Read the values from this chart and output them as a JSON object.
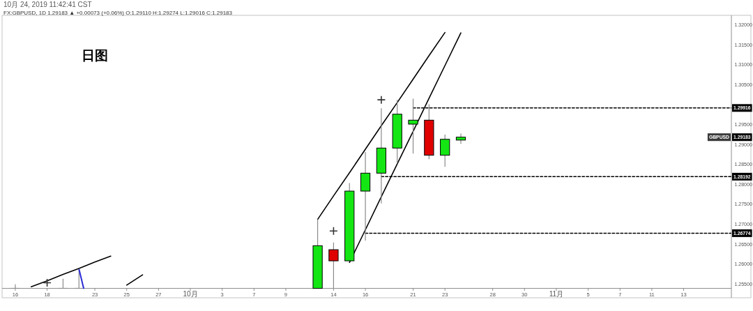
{
  "chart_data": {
    "type": "candlestick",
    "title": "日图",
    "annotations": [
      "10月 24, 2019 11:42:41 CST",
      "FX:GBPUSD, 1D 1.29183 ▲ +0.00073 (+0.06%) O:1.29110 H:1.29274 L:1.29016 C:1.29183",
      {
        "text": "1.29183",
        "y": 1.29183
      },
      "GBPUSD"
    ],
    "categories": [
      "16",
      null,
      "18",
      null,
      null,
      "23",
      null,
      "25",
      null,
      "27",
      null,
      "10月",
      null,
      "3",
      null,
      "7",
      null,
      "9",
      null,
      null,
      "14",
      null,
      "16",
      null,
      null,
      "21",
      null,
      "23",
      null,
      null,
      "28",
      null,
      "30",
      null,
      "11月",
      null,
      "5",
      null,
      "7",
      null,
      "11",
      null,
      "13",
      null,
      null,
      null
    ],
    "ylim": [
      1.2539,
      1.3224
    ],
    "yticks": [
      {
        "value": 1.255,
        "label": "1.25500"
      },
      {
        "value": 1.26,
        "label": "1.26000"
      },
      {
        "value": 1.265,
        "label": "1.26500"
      },
      {
        "value": 1.27,
        "label": "1.27000"
      },
      {
        "value": 1.275,
        "label": "1.27500"
      },
      {
        "value": 1.28,
        "label": "1.28000"
      },
      {
        "value": 1.285,
        "label": "1.28500"
      },
      {
        "value": 1.29,
        "label": "1.29000"
      },
      {
        "value": 1.295,
        "label": "1.29500"
      },
      {
        "value": 1.305,
        "label": "1.30500"
      },
      {
        "value": 1.31,
        "label": "1.31000"
      },
      {
        "value": 1.315,
        "label": "1.31500"
      },
      {
        "value": 1.32,
        "label": "1.32000"
      }
    ],
    "series": [
      {
        "color": "#8a8a8a",
        "ohlc": [
          [
            1.2539,
            1.2549,
            1.2539,
            1.2539
          ],
          null,
          null,
          [
            1.2539,
            1.2563,
            1.2539,
            1.2539
          ],
          [
            1.2539,
            1.2586,
            1.2539,
            1.2539
          ],
          null,
          null,
          null,
          null,
          null,
          null,
          null,
          null,
          null,
          null,
          null,
          null,
          null,
          null,
          [
            1.2539,
            1.2712,
            1.2539,
            1.2646
          ],
          [
            1.2636,
            1.2654,
            1.2539,
            1.2608
          ],
          [
            1.2608,
            1.2803,
            1.2608,
            1.2783
          ],
          [
            1.2783,
            1.2881,
            1.2659,
            1.2828
          ],
          [
            1.2828,
            1.2991,
            1.2752,
            1.2891
          ],
          [
            1.2891,
            1.3012,
            1.2852,
            1.2976
          ],
          [
            1.2951,
            1.3015,
            1.2877,
            1.2961
          ],
          [
            1.2961,
            1.3001,
            1.2863,
            1.2873
          ],
          [
            1.2873,
            1.2925,
            1.2844,
            1.2913
          ],
          [
            1.2911,
            1.29274,
            1.29016,
            1.29183
          ],
          null,
          null,
          null,
          null,
          null,
          null,
          null,
          null,
          null,
          null,
          null,
          null,
          null,
          null,
          null,
          null,
          null
        ],
        "colors": [
          null,
          null,
          null,
          null,
          null,
          null,
          null,
          null,
          null,
          null,
          null,
          null,
          null,
          null,
          null,
          null,
          null,
          null,
          null,
          "#14e614",
          "#e00000",
          "#14e614",
          "#14e614",
          "#14e614",
          "#14e614",
          "#14e614",
          "#e00000",
          "#14e614",
          "#14e614",
          null,
          null,
          null,
          null,
          null,
          null,
          null,
          null,
          null,
          null,
          null,
          null,
          null,
          null,
          null,
          null,
          null
        ]
      },
      {
        "type": "line",
        "color": "#000000",
        "values": [
          null,
          1.2543,
          1.2558,
          1.2574,
          1.2589,
          1.2605,
          1.262,
          null,
          null,
          null,
          null,
          null,
          null,
          null,
          null,
          null,
          null,
          null,
          null,
          null,
          null,
          null,
          null,
          null,
          null,
          null,
          null,
          null,
          null,
          null,
          null,
          null,
          null,
          null,
          null,
          null,
          null,
          null,
          null,
          null,
          null,
          null,
          null,
          null,
          null,
          null
        ]
      },
      {
        "type": "line",
        "color": "#000000",
        "values": [
          null,
          null,
          null,
          null,
          null,
          null,
          null,
          1.2547,
          1.2573,
          null,
          null,
          null,
          null,
          null,
          null,
          null,
          null,
          null,
          null,
          null,
          null,
          null,
          null,
          null,
          null,
          null,
          null,
          null,
          null,
          null,
          null,
          null,
          null,
          null,
          null,
          null,
          null,
          null,
          null,
          null,
          null,
          null,
          null,
          null,
          null,
          null
        ]
      },
      {
        "type": "line",
        "color": "#000000",
        "values": [
          null,
          null,
          null,
          null,
          null,
          null,
          null,
          null,
          null,
          null,
          null,
          null,
          null,
          null,
          null,
          null,
          null,
          null,
          null,
          1.2712,
          1.2771,
          1.2829,
          1.2888,
          1.2947,
          1.3005,
          1.3064,
          1.3123,
          1.3181,
          null,
          null,
          null,
          null,
          null,
          null,
          null,
          null,
          null,
          null,
          null,
          null,
          null,
          null,
          null,
          null,
          null,
          null
        ]
      },
      {
        "type": "line",
        "color": "#000000",
        "values": [
          null,
          null,
          null,
          null,
          null,
          null,
          null,
          null,
          null,
          null,
          null,
          null,
          null,
          null,
          null,
          null,
          null,
          null,
          null,
          null,
          null,
          1.2604,
          1.2686,
          1.2769,
          1.2851,
          1.2933,
          1.3016,
          1.3098,
          1.318,
          null,
          null,
          null,
          null,
          null,
          null,
          null,
          null,
          null,
          null,
          null,
          null,
          null,
          null,
          null,
          null,
          null
        ]
      },
      {
        "type": "line",
        "color": "#000000",
        "line_style": "dashed",
        "values": [
          null,
          null,
          null,
          null,
          null,
          null,
          null,
          null,
          null,
          null,
          null,
          null,
          null,
          null,
          null,
          null,
          null,
          null,
          null,
          null,
          null,
          null,
          null,
          null,
          null,
          1.29916,
          1.29916,
          1.29916,
          1.29916,
          1.29916,
          1.29916,
          1.29916,
          1.29916,
          1.29916,
          1.29916,
          1.29916,
          1.29916,
          1.29916,
          1.29916,
          1.29916,
          1.29916,
          1.29916,
          1.29916,
          1.29916,
          1.29916,
          1.29916
        ],
        "value_labels": [
          null,
          null,
          null,
          null,
          null,
          null,
          null,
          null,
          null,
          null,
          null,
          null,
          null,
          null,
          null,
          null,
          null,
          null,
          null,
          null,
          null,
          null,
          null,
          null,
          null,
          null,
          null,
          null,
          null,
          null,
          null,
          null,
          null,
          null,
          null,
          null,
          null,
          null,
          null,
          null,
          null,
          null,
          null,
          null,
          null,
          "1.29916"
        ]
      },
      {
        "type": "line",
        "color": "#000000",
        "line_style": "dashed",
        "values": [
          null,
          null,
          null,
          null,
          null,
          null,
          null,
          null,
          null,
          null,
          null,
          null,
          null,
          null,
          null,
          null,
          null,
          null,
          null,
          null,
          null,
          null,
          null,
          1.28192,
          1.28192,
          1.28192,
          1.28192,
          1.28192,
          1.28192,
          1.28192,
          1.28192,
          1.28192,
          1.28192,
          1.28192,
          1.28192,
          1.28192,
          1.28192,
          1.28192,
          1.28192,
          1.28192,
          1.28192,
          1.28192,
          1.28192,
          1.28192,
          1.28192,
          1.28192
        ],
        "value_labels": [
          null,
          null,
          null,
          null,
          null,
          null,
          null,
          null,
          null,
          null,
          null,
          null,
          null,
          null,
          null,
          null,
          null,
          null,
          null,
          null,
          null,
          null,
          null,
          null,
          null,
          null,
          null,
          null,
          null,
          null,
          null,
          null,
          null,
          null,
          null,
          null,
          null,
          null,
          null,
          null,
          null,
          null,
          null,
          null,
          null,
          "1.28192"
        ]
      },
      {
        "type": "line",
        "color": "#000000",
        "line_style": "dashed",
        "values": [
          null,
          null,
          null,
          null,
          null,
          null,
          null,
          null,
          null,
          null,
          null,
          null,
          null,
          null,
          null,
          null,
          null,
          null,
          null,
          null,
          null,
          null,
          1.26774,
          1.26774,
          1.26774,
          1.26774,
          1.26774,
          1.26774,
          1.26774,
          1.26774,
          1.26774,
          1.26774,
          1.26774,
          1.26774,
          1.26774,
          1.26774,
          1.26774,
          1.26774,
          1.26774,
          1.26774,
          1.26774,
          1.26774,
          1.26774,
          1.26774,
          1.26774,
          1.26774
        ],
        "value_labels": [
          null,
          null,
          null,
          null,
          null,
          null,
          null,
          null,
          null,
          null,
          null,
          null,
          null,
          null,
          null,
          null,
          null,
          null,
          null,
          null,
          null,
          null,
          null,
          null,
          null,
          null,
          null,
          null,
          null,
          null,
          null,
          null,
          null,
          null,
          null,
          null,
          null,
          null,
          null,
          null,
          null,
          null,
          null,
          null,
          null,
          "1.26774"
        ]
      },
      {
        "type": "scatter",
        "color": "#333333",
        "marker": "cross",
        "values": [
          null,
          null,
          1.2553,
          null,
          null,
          null,
          null,
          null,
          null,
          null,
          null,
          null,
          null,
          null,
          null,
          null,
          null,
          null,
          null,
          null,
          1.2683,
          null,
          null,
          1.3012,
          null,
          null,
          null,
          null,
          null,
          null,
          null,
          null,
          null,
          null,
          null,
          null,
          null,
          null,
          null,
          null,
          null,
          null,
          null,
          null,
          null,
          null
        ]
      }
    ]
  }
}
